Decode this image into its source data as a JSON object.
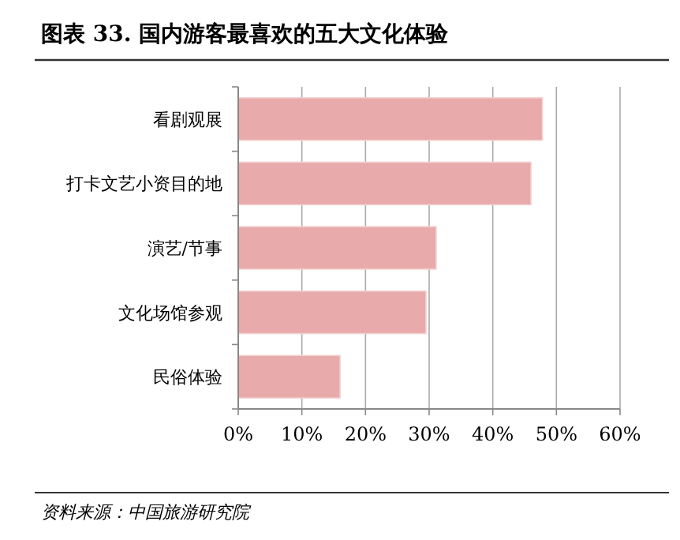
{
  "chart_data": {
    "type": "bar",
    "orientation": "horizontal",
    "title": "图表 33. 国内游客最喜欢的五大文化体验",
    "categories": [
      "看剧观展",
      "打卡文艺小资目的地",
      "演艺/节事",
      "文化场馆参观",
      "民俗体验"
    ],
    "series": [
      {
        "color": "#e8aaaa",
        "values": [
          47.8,
          46.0,
          31.1,
          29.5,
          16.0
        ]
      }
    ],
    "xlim": [
      0,
      60
    ],
    "xticks": [
      {
        "value": 0,
        "label": "0%"
      },
      {
        "value": 10,
        "label": "10%"
      },
      {
        "value": 20,
        "label": "20%"
      },
      {
        "value": 30,
        "label": "30%"
      },
      {
        "value": 40,
        "label": "40%"
      },
      {
        "value": 50,
        "label": "50%"
      },
      {
        "value": 60,
        "label": "60%"
      }
    ],
    "grid": "x",
    "annotations": [
      "资料来源：中国旅游研究院"
    ]
  }
}
